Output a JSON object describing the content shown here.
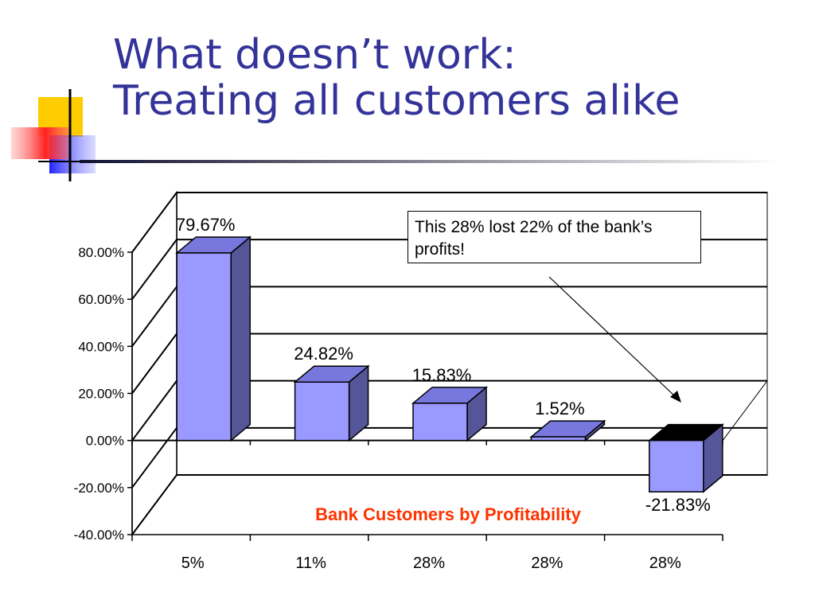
{
  "slide": {
    "title_line1": "What doesn’t work:",
    "title_line2": "Treating all customers alike",
    "callout_text": "This 28% lost 22% of the bank’s profits!",
    "title_color": "#333399"
  },
  "chart_data": {
    "type": "bar",
    "title": "Bank Customers by Profitability",
    "title_color": "#ff3300",
    "categories": [
      "5%",
      "11%",
      "28%",
      "28%",
      "28%"
    ],
    "values": [
      79.67,
      24.82,
      15.83,
      1.52,
      -21.83
    ],
    "data_labels": [
      "79.67%",
      "24.82%",
      "15.83%",
      "1.52%",
      "-21.83%"
    ],
    "ylim": [
      -40,
      80
    ],
    "y_ticks": [
      80,
      60,
      40,
      20,
      0,
      -20,
      -40
    ],
    "y_tick_labels": [
      "80.00%",
      "60.00%",
      "40.00%",
      "20.00%",
      "0.00%",
      "-20.00%",
      "-40.00%"
    ],
    "grid": true,
    "three_d": true,
    "bar_colors": {
      "front": "#9999ff",
      "top": "#7777dd",
      "side": "#555599"
    }
  }
}
